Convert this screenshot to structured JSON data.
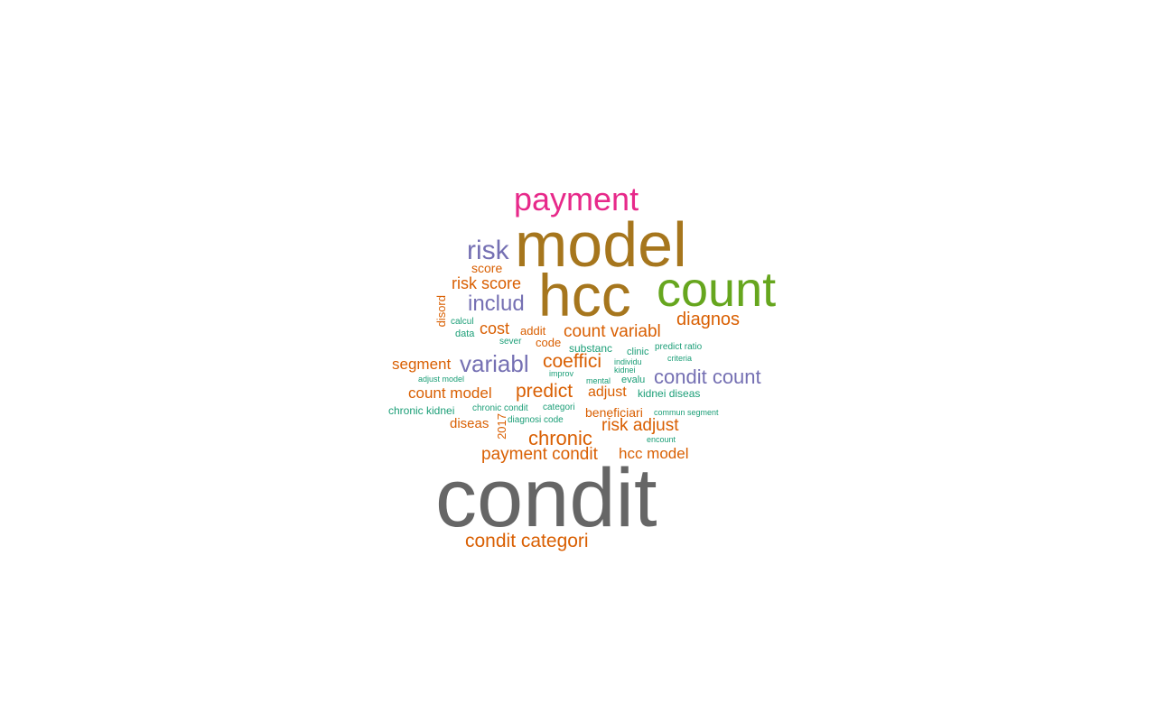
{
  "colors": {
    "background": "#ffffff",
    "gray": "#666666",
    "gold": "#a6761d",
    "green": "#66a61e",
    "magenta": "#e7298a",
    "purple": "#7570b3",
    "orange": "#d95f02",
    "teal": "#1b9e77"
  },
  "words": [
    {
      "text": "condit",
      "color": "#666666"
    },
    {
      "text": "model",
      "color": "#a6761d"
    },
    {
      "text": "hcc",
      "color": "#a6761d"
    },
    {
      "text": "count",
      "color": "#66a61e"
    },
    {
      "text": "payment",
      "color": "#e7298a"
    },
    {
      "text": "risk",
      "color": "#7570b3"
    },
    {
      "text": "includ",
      "color": "#7570b3"
    },
    {
      "text": "variabl",
      "color": "#7570b3"
    },
    {
      "text": "condit count",
      "color": "#7570b3"
    },
    {
      "text": "diagnos",
      "color": "#d95f02"
    },
    {
      "text": "count variabl",
      "color": "#d95f02"
    },
    {
      "text": "risk score",
      "color": "#d95f02"
    },
    {
      "text": "score",
      "color": "#d95f02"
    },
    {
      "text": "cost",
      "color": "#d95f02"
    },
    {
      "text": "addit",
      "color": "#d95f02"
    },
    {
      "text": "code",
      "color": "#d95f02"
    },
    {
      "text": "coeffici",
      "color": "#d95f02"
    },
    {
      "text": "segment",
      "color": "#d95f02"
    },
    {
      "text": "count model",
      "color": "#d95f02"
    },
    {
      "text": "predict",
      "color": "#d95f02"
    },
    {
      "text": "adjust",
      "color": "#d95f02"
    },
    {
      "text": "beneficiari",
      "color": "#d95f02"
    },
    {
      "text": "risk adjust",
      "color": "#d95f02"
    },
    {
      "text": "diseas",
      "color": "#d95f02"
    },
    {
      "text": "chronic",
      "color": "#d95f02"
    },
    {
      "text": "payment condit",
      "color": "#d95f02"
    },
    {
      "text": "hcc model",
      "color": "#d95f02"
    },
    {
      "text": "condit categori",
      "color": "#d95f02"
    },
    {
      "text": "disord",
      "color": "#d95f02"
    },
    {
      "text": "2017",
      "color": "#d95f02"
    },
    {
      "text": "calcul",
      "color": "#1b9e77"
    },
    {
      "text": "data",
      "color": "#1b9e77"
    },
    {
      "text": "sever",
      "color": "#1b9e77"
    },
    {
      "text": "substanc",
      "color": "#1b9e77"
    },
    {
      "text": "clinic",
      "color": "#1b9e77"
    },
    {
      "text": "predict ratio",
      "color": "#1b9e77"
    },
    {
      "text": "individu",
      "color": "#1b9e77"
    },
    {
      "text": "criteria",
      "color": "#1b9e77"
    },
    {
      "text": "kidnei",
      "color": "#1b9e77"
    },
    {
      "text": "improv",
      "color": "#1b9e77"
    },
    {
      "text": "mental",
      "color": "#1b9e77"
    },
    {
      "text": "evalu",
      "color": "#1b9e77"
    },
    {
      "text": "adjust model",
      "color": "#1b9e77"
    },
    {
      "text": "kidnei diseas",
      "color": "#1b9e77"
    },
    {
      "text": "chronic kidnei",
      "color": "#1b9e77"
    },
    {
      "text": "chronic condit",
      "color": "#1b9e77"
    },
    {
      "text": "categori",
      "color": "#1b9e77"
    },
    {
      "text": "commun segment",
      "color": "#1b9e77"
    },
    {
      "text": "diagnosi code",
      "color": "#1b9e77"
    },
    {
      "text": "encount",
      "color": "#1b9e77"
    }
  ]
}
